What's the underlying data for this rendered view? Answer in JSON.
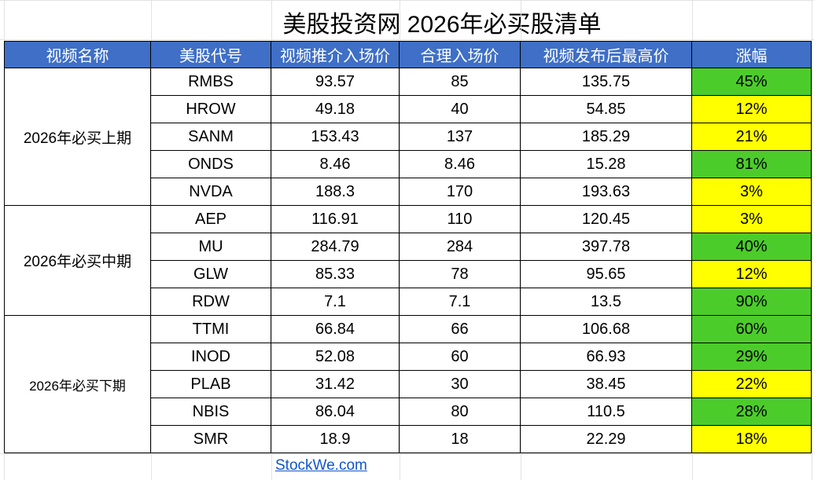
{
  "title": "美股投资网 2026年必买股清单",
  "table": {
    "columns": [
      "视频名称",
      "美股代号",
      "视频推介入场价",
      "合理入场价",
      "视频发布后最高价",
      "涨幅"
    ],
    "groups": [
      {
        "label": "2026年必买上期",
        "rows": [
          {
            "cells": [
              "RMBS",
              "93.57",
              "85",
              "135.75",
              "45%"
            ],
            "color": "#4ccc2a"
          },
          {
            "cells": [
              "HROW",
              "49.18",
              "40",
              "54.85",
              "12%"
            ],
            "color": "#ffff00"
          },
          {
            "cells": [
              "SANM",
              "153.43",
              "137",
              "185.29",
              "21%"
            ],
            "color": "#ffff00"
          },
          {
            "cells": [
              "ONDS",
              "8.46",
              "8.46",
              "15.28",
              "81%"
            ],
            "color": "#4ccc2a"
          },
          {
            "cells": [
              "NVDA",
              "188.3",
              "170",
              "193.63",
              "3%"
            ],
            "color": "#ffff00"
          }
        ]
      },
      {
        "label": "2026年必买中期",
        "rows": [
          {
            "cells": [
              "AEP",
              "116.91",
              "110",
              "120.45",
              "3%"
            ],
            "color": "#ffff00"
          },
          {
            "cells": [
              "MU",
              "284.79",
              "284",
              "397.78",
              "40%"
            ],
            "color": "#4ccc2a"
          },
          {
            "cells": [
              "GLW",
              "85.33",
              "78",
              "95.65",
              "12%"
            ],
            "color": "#ffff00"
          },
          {
            "cells": [
              "RDW",
              "7.1",
              "7.1",
              "13.5",
              "90%"
            ],
            "color": "#4ccc2a"
          }
        ]
      },
      {
        "label": "2026年必买下期",
        "rows": [
          {
            "cells": [
              "TTMI",
              "66.84",
              "66",
              "106.68",
              "60%"
            ],
            "color": "#4ccc2a"
          },
          {
            "cells": [
              "INOD",
              "52.08",
              "60",
              "66.93",
              "29%"
            ],
            "color": "#4ccc2a"
          },
          {
            "cells": [
              "PLAB",
              "31.42",
              "30",
              "38.45",
              "22%"
            ],
            "color": "#ffff00"
          },
          {
            "cells": [
              "NBIS",
              "86.04",
              "80",
              "110.5",
              "28%"
            ],
            "color": "#4ccc2a"
          },
          {
            "cells": [
              "SMR",
              "18.9",
              "18",
              "22.29",
              "18%"
            ],
            "color": "#ffff00"
          }
        ]
      }
    ]
  },
  "footer_link": "StockWe.com"
}
